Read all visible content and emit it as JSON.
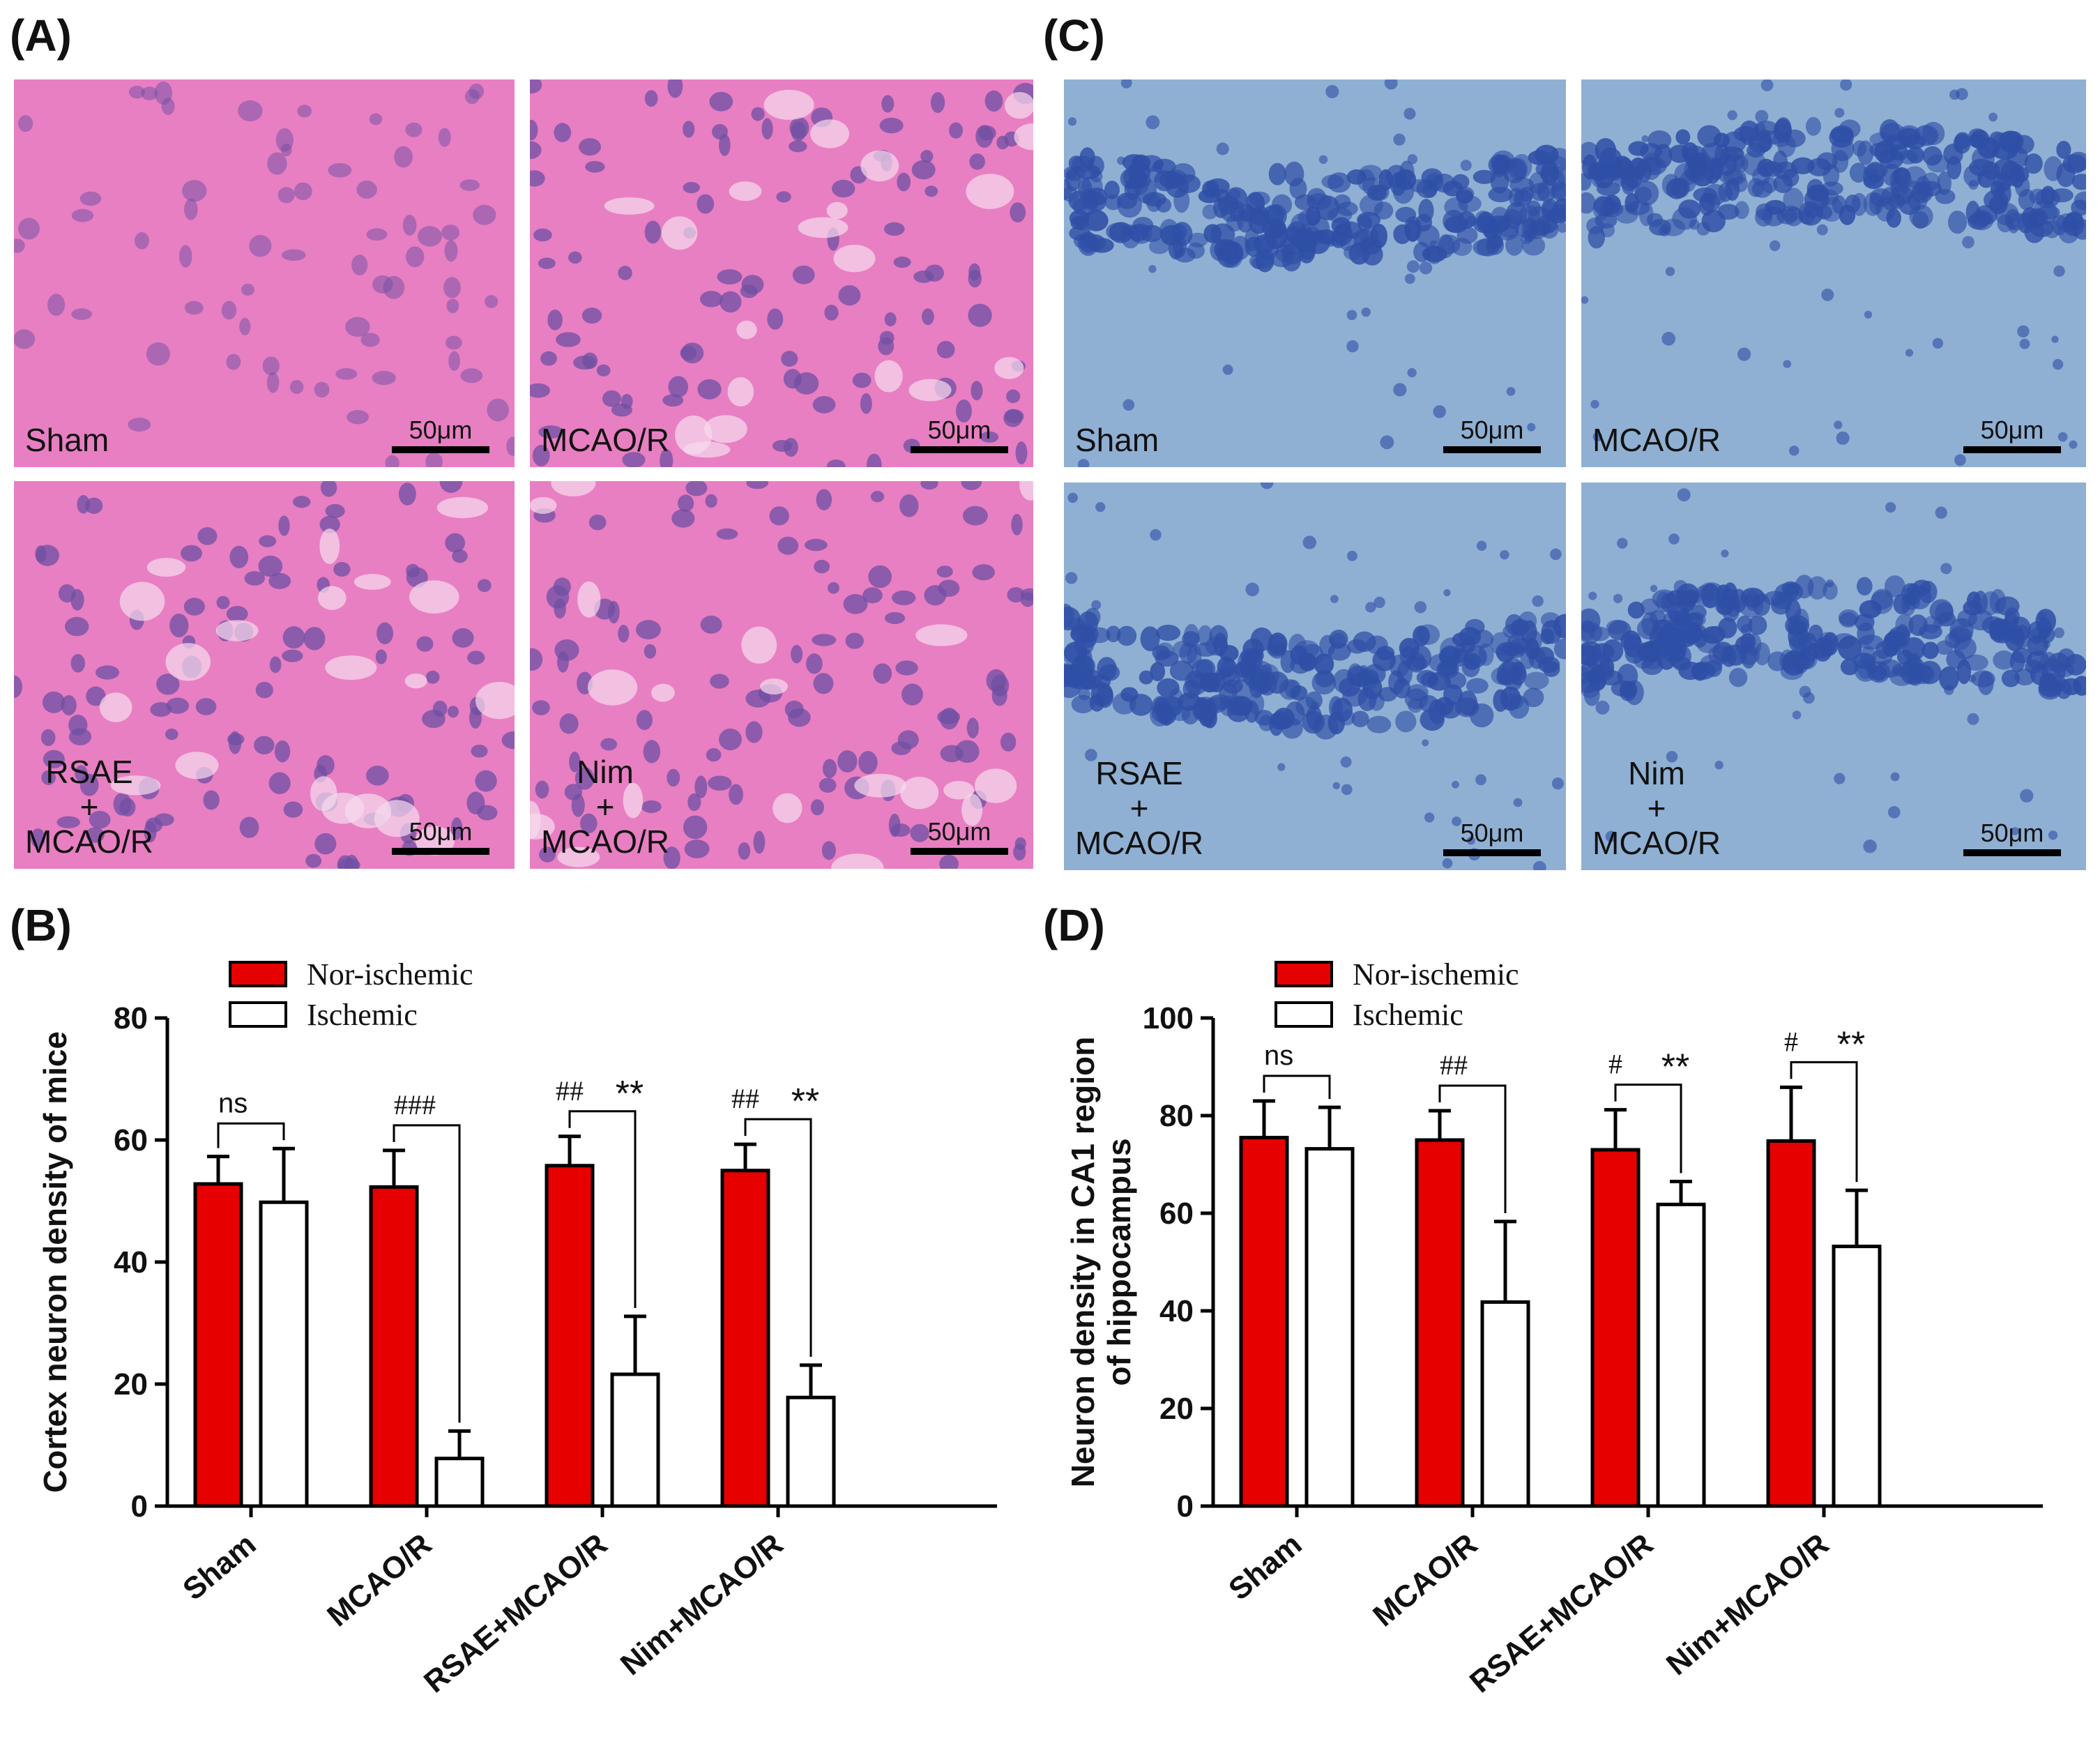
{
  "panels": {
    "A": "(A)",
    "B": "(B)",
    "C": "(C)",
    "D": "(D)"
  },
  "micrographs": {
    "A": {
      "stain_color": "#e87fc2",
      "nucleus_color": "#6f4fa3",
      "tiles": [
        {
          "label": "Sham",
          "scale": "50μm"
        },
        {
          "label": "MCAO/R",
          "scale": "50μm"
        },
        {
          "label": "RSAE\n+\nMCAO/R",
          "scale": "50μm"
        },
        {
          "label": "Nim\n+\nMCAO/R",
          "scale": "50μm"
        }
      ]
    },
    "C": {
      "stain_color": "#8fb0d3",
      "nucleus_color": "#2f4fa6",
      "tiles": [
        {
          "label": "Sham",
          "scale": "50μm"
        },
        {
          "label": "MCAO/R",
          "scale": "50μm"
        },
        {
          "label": "RSAE\n+\nMCAO/R",
          "scale": "50μm"
        },
        {
          "label": "Nim\n+\nMCAO/R",
          "scale": "50μm"
        }
      ]
    }
  },
  "colors": {
    "nor_ischemic": "#e60000",
    "ischemic": "#ffffff",
    "axis": "#000000"
  },
  "chart_data": [
    {
      "panel": "B",
      "type": "bar",
      "ylabel": "Cortex neuron density of mice",
      "ylim": [
        0,
        80
      ],
      "yticks": [
        0,
        20,
        40,
        60,
        80
      ],
      "categories": [
        "Sham",
        "MCAO/R",
        "RSAE+MCAO/R",
        "Nim+MCAO/R"
      ],
      "legend": [
        "Nor-ischemic",
        "Ischemic"
      ],
      "series": [
        {
          "name": "Nor-ischemic",
          "values": [
            52.8,
            52.3,
            55.8,
            55.0
          ],
          "errors": [
            4.5,
            6.0,
            4.8,
            4.3
          ]
        },
        {
          "name": "Ischemic",
          "values": [
            49.8,
            7.8,
            21.6,
            17.8
          ],
          "errors": [
            8.8,
            4.5,
            9.5,
            5.3
          ]
        }
      ],
      "annotations": [
        {
          "left": "ns",
          "right": ""
        },
        {
          "left": "###",
          "right": ""
        },
        {
          "left": "##",
          "right": "**"
        },
        {
          "left": "##",
          "right": "**"
        }
      ]
    },
    {
      "panel": "D",
      "type": "bar",
      "ylabel": "Neuron density in CA1 region\nof hippocampus",
      "ylim": [
        0,
        100
      ],
      "yticks": [
        0,
        20,
        40,
        60,
        80,
        100
      ],
      "categories": [
        "Sham",
        "MCAO/R",
        "RSAE+MCAO/R",
        "Nim+MCAO/R"
      ],
      "legend": [
        "Nor-ischemic",
        "Ischemic"
      ],
      "series": [
        {
          "name": "Nor-ischemic",
          "values": [
            75.5,
            75.0,
            73.0,
            74.8
          ],
          "errors": [
            7.5,
            6.0,
            8.2,
            11.0
          ]
        },
        {
          "name": "Ischemic",
          "values": [
            73.2,
            41.8,
            61.8,
            53.2
          ],
          "errors": [
            8.5,
            16.5,
            4.7,
            11.5
          ]
        }
      ],
      "annotations": [
        {
          "left": "ns",
          "right": ""
        },
        {
          "left": "##",
          "right": ""
        },
        {
          "left": "#",
          "right": "**"
        },
        {
          "left": "#",
          "right": "**"
        }
      ]
    }
  ]
}
